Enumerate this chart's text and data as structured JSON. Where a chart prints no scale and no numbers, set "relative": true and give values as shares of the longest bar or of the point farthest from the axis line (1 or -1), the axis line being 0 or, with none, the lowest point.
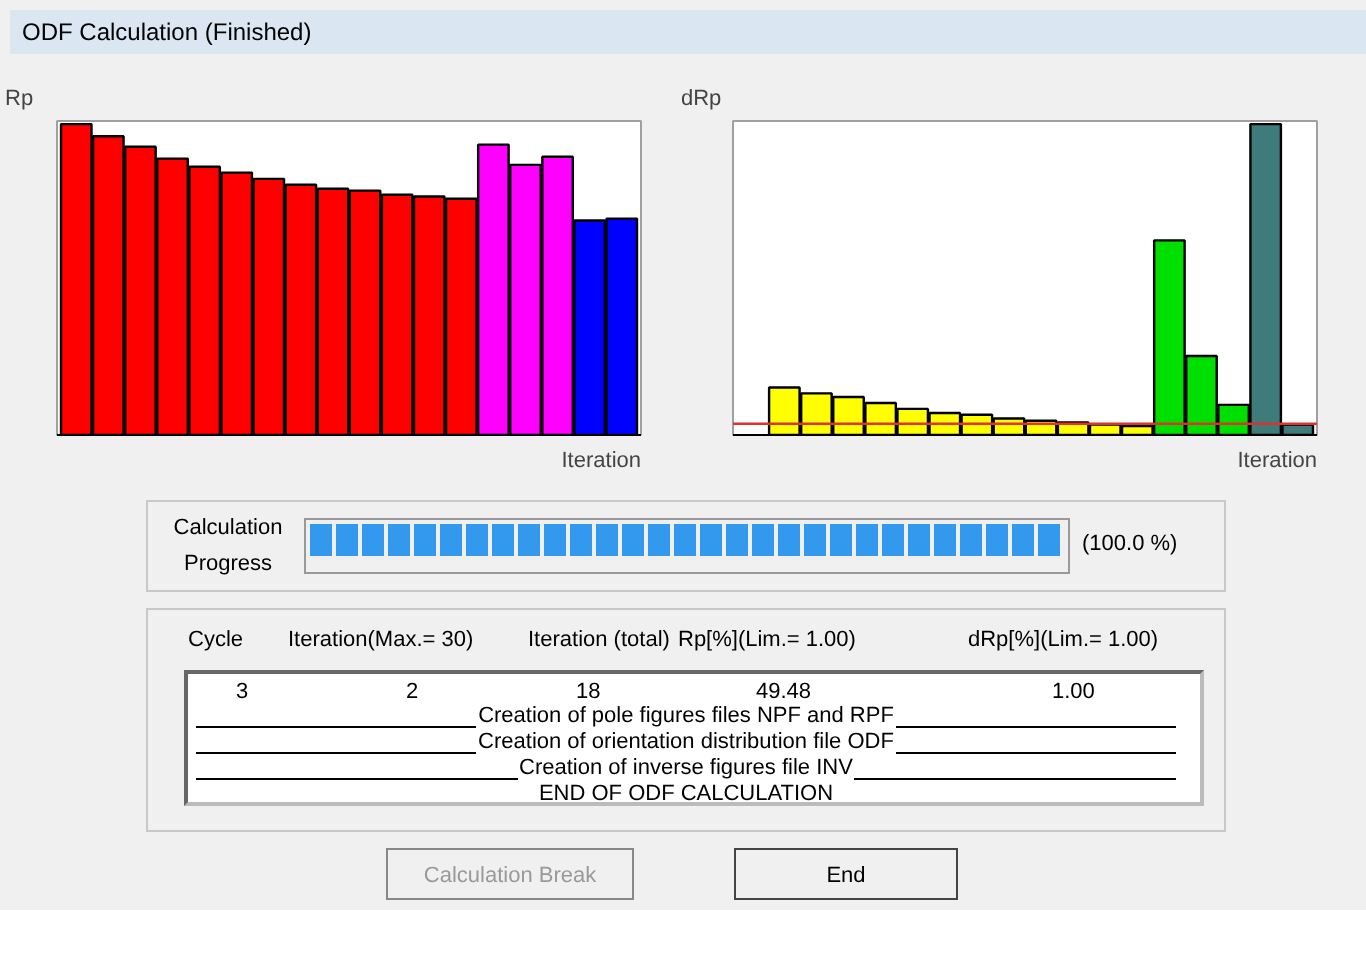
{
  "chart_data": [
    {
      "type": "bar",
      "relative": true,
      "ylabel": "Rp",
      "xlabel": "Iteration",
      "grid": false,
      "categories": [
        null,
        null,
        null,
        null,
        null,
        null,
        null,
        null,
        null,
        null,
        null,
        null,
        null,
        null,
        null,
        null,
        null,
        null
      ],
      "values": [
        1.0,
        0.961,
        0.927,
        0.889,
        0.863,
        0.844,
        0.824,
        0.805,
        0.792,
        0.786,
        0.773,
        0.767,
        0.76,
        0.934,
        0.869,
        0.895,
        0.69,
        0.696
      ],
      "colors": [
        "#ff0000",
        "#ff0000",
        "#ff0000",
        "#ff0000",
        "#ff0000",
        "#ff0000",
        "#ff0000",
        "#ff0000",
        "#ff0000",
        "#ff0000",
        "#ff0000",
        "#ff0000",
        "#ff0000",
        "#ff00ff",
        "#ff00ff",
        "#ff00ff",
        "#0000ff",
        "#0000ff"
      ]
    },
    {
      "type": "bar",
      "relative": true,
      "ylabel": "dRp",
      "xlabel": "Iteration",
      "grid": false,
      "categories": [
        null,
        null,
        null,
        null,
        null,
        null,
        null,
        null,
        null,
        null,
        null,
        null,
        null,
        null,
        null,
        null,
        null
      ],
      "values": [
        0.153,
        0.134,
        0.122,
        0.103,
        0.084,
        0.071,
        0.065,
        0.053,
        0.046,
        0.04,
        0.034,
        0.029,
        0.626,
        0.254,
        0.097,
        1.0,
        0.034
      ],
      "colors": [
        "#ffff00",
        "#ffff00",
        "#ffff00",
        "#ffff00",
        "#ffff00",
        "#ffff00",
        "#ffff00",
        "#ffff00",
        "#ffff00",
        "#ffff00",
        "#ffff00",
        "#ffff00",
        "#00e000",
        "#00e000",
        "#00e000",
        "#3e7b7b",
        "#3e7b7b"
      ],
      "ref_lines": [
        {
          "axis": "y",
          "value": 0.036,
          "color": "#e03030"
        }
      ]
    },
    {
      "type": "other",
      "title": "ODF Calculation (Finished)",
      "annotations": [
        "Calculation",
        "Progress",
        "(100.0 %)",
        "Cycle",
        "Iteration(Max.= 30)",
        "Iteration (total)",
        "Rp[%](Lim.= 1.00)",
        "dRp[%](Lim.= 1.00)",
        "3",
        "2",
        "18",
        "49.48",
        "1.00",
        "Creation of pole figures files NPF and RPF",
        "Creation of orientation distribution file ODF",
        "Creation of inverse figures file INV",
        "END OF ODF CALCULATION",
        "Calculation Break",
        "End"
      ]
    }
  ]
}
